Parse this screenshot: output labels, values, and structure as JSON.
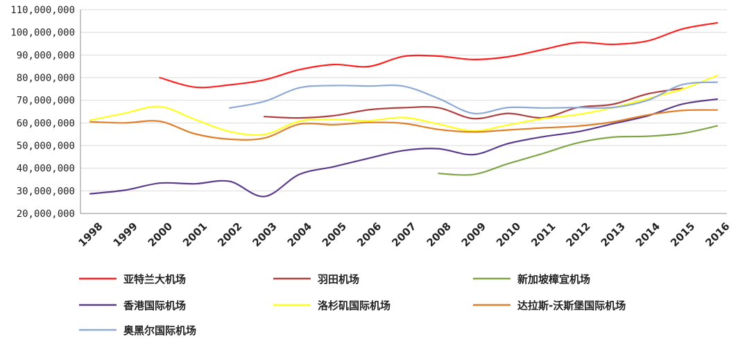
{
  "chart_data": {
    "type": "line",
    "title": "",
    "xlabel": "",
    "ylabel": "",
    "ylim": [
      20000000,
      110000000
    ],
    "y_ticks": [
      "20,000,000",
      "30,000,000",
      "40,000,000",
      "50,000,000",
      "60,000,000",
      "70,000,000",
      "80,000,000",
      "90,000,000",
      "100,000,000",
      "110,000,000"
    ],
    "y_tick_values": [
      20000000,
      30000000,
      40000000,
      50000000,
      60000000,
      70000000,
      80000000,
      90000000,
      100000000,
      110000000
    ],
    "categories": [
      "1998",
      "1999",
      "2000",
      "2001",
      "2002",
      "2003",
      "2004",
      "2005",
      "2006",
      "2007",
      "2008",
      "2009",
      "2010",
      "2011",
      "2012",
      "2013",
      "2014",
      "2015",
      "2016"
    ],
    "grid": true,
    "legend_position": "bottom",
    "series": [
      {
        "name": "亚特兰大机场",
        "color": "#ff2020",
        "values": [
          null,
          null,
          80000000,
          75800000,
          76800000,
          79000000,
          83500000,
          85800000,
          84900000,
          89400000,
          89500000,
          88000000,
          89200000,
          92400000,
          95500000,
          94700000,
          96200000,
          101500000,
          104200000
        ]
      },
      {
        "name": "羽田机场",
        "color": "#b04040",
        "values": [
          null,
          null,
          null,
          null,
          null,
          62800000,
          62200000,
          63200000,
          65800000,
          66700000,
          66700000,
          61900000,
          64200000,
          62300000,
          66800000,
          68200000,
          72800000,
          75300000,
          null
        ]
      },
      {
        "name": "新加坡樟宜机场",
        "color": "#7ea646",
        "values": [
          null,
          null,
          null,
          null,
          null,
          null,
          null,
          null,
          null,
          null,
          37700000,
          37200000,
          42000000,
          46500000,
          51200000,
          53700000,
          54100000,
          55400000,
          58700000
        ]
      },
      {
        "name": "香港国际机场",
        "color": "#5b3a8c",
        "values": [
          28700000,
          30300000,
          33400000,
          33100000,
          34200000,
          27500000,
          37200000,
          40700000,
          44400000,
          47800000,
          48600000,
          46000000,
          50900000,
          53900000,
          56100000,
          59600000,
          63100000,
          68300000,
          70500000
        ]
      },
      {
        "name": "洛杉矶国际机场",
        "color": "#ffff1a",
        "values": [
          61200000,
          64300000,
          67200000,
          61600000,
          56200000,
          54900000,
          60700000,
          61500000,
          61000000,
          62400000,
          59500000,
          56500000,
          59100000,
          61900000,
          63700000,
          66700000,
          70700000,
          74900000,
          80900000
        ]
      },
      {
        "name": "达拉斯-沃斯堡国际机场",
        "color": "#e07e2a",
        "values": [
          60500000,
          60000000,
          60700000,
          55200000,
          52800000,
          53300000,
          59400000,
          59200000,
          60200000,
          59800000,
          57100000,
          56000000,
          56900000,
          57800000,
          58600000,
          60400000,
          63500000,
          65500000,
          65700000
        ]
      },
      {
        "name": "奥黑尔国际机场",
        "color": "#8ea9d3",
        "values": [
          null,
          null,
          null,
          null,
          66600000,
          69500000,
          75500000,
          76500000,
          76300000,
          76200000,
          70800000,
          64200000,
          66800000,
          66600000,
          66800000,
          66800000,
          70000000,
          76900000,
          78000000
        ]
      }
    ]
  }
}
